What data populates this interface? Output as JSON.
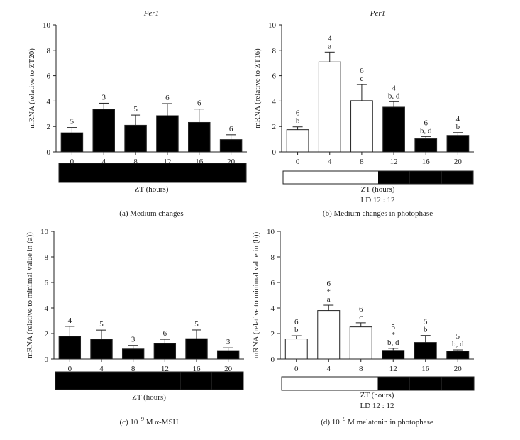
{
  "chart_data": [
    {
      "type": "bar",
      "title": "Per1",
      "ylabel": "mRNA (relative to ZT20)",
      "xlabel": "ZT (hours)",
      "caption": "(a)  Medium changes",
      "categories": [
        "0",
        "4",
        "8",
        "12",
        "16",
        "20"
      ],
      "values": [
        1.5,
        3.35,
        2.1,
        2.85,
        2.32,
        0.97
      ],
      "errors": [
        0.42,
        0.48,
        0.8,
        0.95,
        1.05,
        0.38
      ],
      "fills": [
        "dark",
        "dark",
        "dark",
        "dark",
        "dark",
        "dark"
      ],
      "labels": [
        [
          "5"
        ],
        [
          "3"
        ],
        [
          "5"
        ],
        [
          "6"
        ],
        [
          "6"
        ],
        [
          "6"
        ]
      ],
      "ylim": [
        0,
        10
      ],
      "yticks": [
        "0",
        "2",
        "4",
        "6",
        "8",
        "10"
      ],
      "lighting_bar": [
        "dark",
        "dark",
        "dark",
        "dark",
        "dark",
        "dark"
      ],
      "lighting_label": "",
      "grid": false
    },
    {
      "type": "bar",
      "title": "Per1",
      "ylabel": "mRNA (relative to ZT16)",
      "xlabel": "ZT (hours)",
      "caption": "(b)  Medium changes in photophase",
      "categories": [
        "0",
        "4",
        "8",
        "12",
        "16",
        "20"
      ],
      "values": [
        1.75,
        7.08,
        4.03,
        3.52,
        1.03,
        1.3
      ],
      "errors": [
        0.22,
        0.78,
        1.27,
        0.43,
        0.18,
        0.22
      ],
      "fills": [
        "light",
        "light",
        "light",
        "dark",
        "dark",
        "dark"
      ],
      "labels": [
        [
          "6",
          "b"
        ],
        [
          "4",
          "a"
        ],
        [
          "6",
          "c"
        ],
        [
          "4",
          "b, d"
        ],
        [
          "6",
          "b, d"
        ],
        [
          "4",
          "b"
        ]
      ],
      "ylim": [
        0,
        10
      ],
      "yticks": [
        "0",
        "2",
        "4",
        "6",
        "8",
        "10"
      ],
      "lighting_bar": [
        "light",
        "light",
        "light",
        "dark",
        "dark",
        "dark"
      ],
      "lighting_label": "LD 12 : 12",
      "grid": false
    },
    {
      "type": "bar",
      "title": "",
      "ylabel": "mRNA (relative to minimal value in (a))",
      "xlabel": "ZT (hours)",
      "caption": "(c)  10",
      "caption_sup": "−9",
      "caption_rest": " M α-MSH",
      "categories": [
        "0",
        "4",
        "8",
        "12",
        "16",
        "20"
      ],
      "values": [
        1.78,
        1.55,
        0.79,
        1.22,
        1.6,
        0.66
      ],
      "errors": [
        0.78,
        0.72,
        0.28,
        0.33,
        0.68,
        0.22
      ],
      "fills": [
        "dark",
        "dark",
        "dark",
        "dark",
        "dark",
        "dark"
      ],
      "labels": [
        [
          "4"
        ],
        [
          "5"
        ],
        [
          "3"
        ],
        [
          "6"
        ],
        [
          "5"
        ],
        [
          "3"
        ]
      ],
      "ylim": [
        0,
        10
      ],
      "yticks": [
        "0",
        "2",
        "4",
        "6",
        "8",
        "10"
      ],
      "lighting_bar": [
        "dark",
        "dark",
        "dark",
        "dark",
        "dark",
        "dark"
      ],
      "lighting_label": "",
      "grid": false
    },
    {
      "type": "bar",
      "title": "",
      "ylabel": "mRNA (relative to minimal value in (b))",
      "xlabel": "ZT (hours)",
      "caption": "(d)  10",
      "caption_sup": "−9",
      "caption_rest": " M melatonin in photophase",
      "categories": [
        "0",
        "4",
        "8",
        "12",
        "16",
        "20"
      ],
      "values": [
        1.58,
        3.8,
        2.52,
        0.68,
        1.3,
        0.62
      ],
      "errors": [
        0.25,
        0.42,
        0.32,
        0.16,
        0.55,
        0.1
      ],
      "fills": [
        "light",
        "light",
        "light",
        "dark",
        "dark",
        "dark"
      ],
      "labels": [
        [
          "6",
          "b"
        ],
        [
          "6",
          "*",
          "a"
        ],
        [
          "6",
          "c"
        ],
        [
          "5",
          "*",
          "b, d"
        ],
        [
          "5",
          "b"
        ],
        [
          "5",
          "b, d"
        ]
      ],
      "ylim": [
        0,
        10
      ],
      "yticks": [
        "0",
        "2",
        "4",
        "6",
        "8",
        "10"
      ],
      "lighting_bar": [
        "light",
        "light",
        "light",
        "dark",
        "dark",
        "dark"
      ],
      "lighting_label": "LD 12 : 12",
      "grid": false
    }
  ],
  "colors": {
    "dark_bar": "#000000",
    "light_bar": "#ffffff",
    "axis": "#222222"
  }
}
